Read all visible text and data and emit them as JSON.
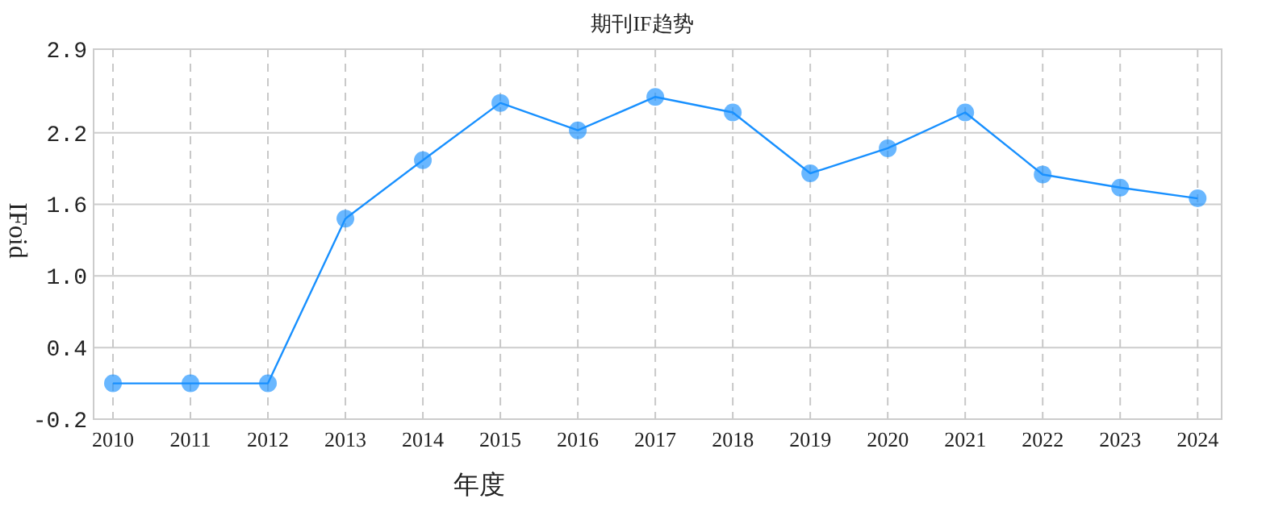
{
  "chart_data": {
    "type": "line",
    "title": "期刊IF趋势",
    "xlabel": "年度",
    "ylabel": "IFoid",
    "categories": [
      "2010",
      "2011",
      "2012",
      "2013",
      "2014",
      "2015",
      "2016",
      "2017",
      "2018",
      "2019",
      "2020",
      "2021",
      "2022",
      "2023",
      "2024"
    ],
    "series": [
      {
        "color": "#1890ff",
        "values": [
          0.1,
          0.1,
          0.1,
          1.48,
          1.97,
          2.45,
          2.22,
          2.5,
          2.37,
          1.86,
          2.07,
          2.37,
          1.85,
          1.74,
          1.65
        ]
      }
    ],
    "ylim": [
      -0.2,
      2.9
    ],
    "yticks": [
      -0.2,
      0.4,
      {
        "value": 1,
        "label": "1.0"
      },
      1.6,
      2.2,
      2.9
    ],
    "grid": true,
    "marker": "circle",
    "line_style": "solid"
  }
}
